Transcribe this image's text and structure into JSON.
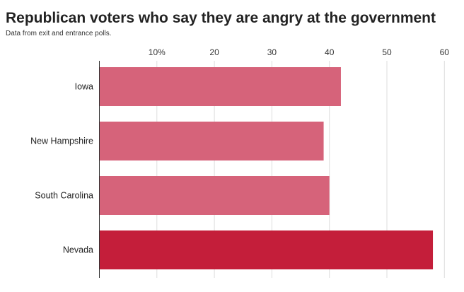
{
  "chart_data": {
    "type": "bar",
    "orientation": "horizontal",
    "title": "Republican voters who say they are angry at the government",
    "subtitle": "Data from exit and entrance polls.",
    "categories": [
      "Iowa",
      "New Hampshire",
      "South Carolina",
      "Nevada"
    ],
    "values": [
      42,
      39,
      40,
      58
    ],
    "colors": [
      "#d6637a",
      "#d6637a",
      "#d6637a",
      "#c41e3a"
    ],
    "xlim": [
      0,
      60
    ],
    "ticks": [
      10,
      20,
      30,
      40,
      50,
      60
    ],
    "tick_labels": [
      "10%",
      "20",
      "30",
      "40",
      "50",
      "60"
    ],
    "axis_position": "top",
    "grid": true
  }
}
